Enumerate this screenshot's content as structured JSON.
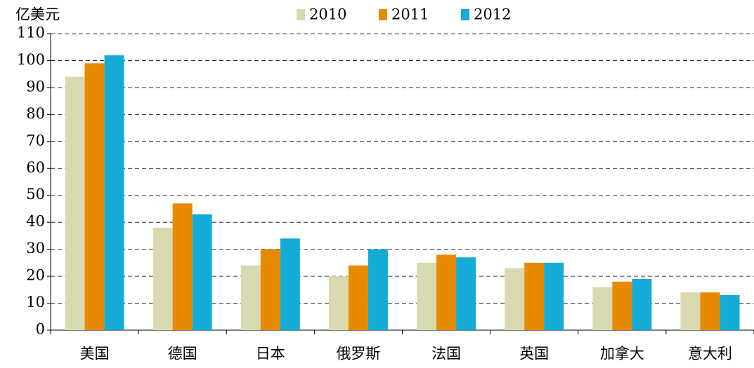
{
  "chart_data": {
    "type": "bar",
    "y_label": "亿美元",
    "categories": [
      "美国",
      "德国",
      "日本",
      "俄罗斯",
      "法国",
      "英国",
      "加拿大",
      "意大利"
    ],
    "series": [
      {
        "name": "2010",
        "color": "#d9d9b0",
        "values": [
          94,
          38,
          24,
          20,
          25,
          23,
          16,
          14
        ]
      },
      {
        "name": "2011",
        "color": "#e88a00",
        "values": [
          99,
          47,
          30,
          24,
          28,
          25,
          18,
          14
        ]
      },
      {
        "name": "2012",
        "color": "#14acd6",
        "values": [
          102,
          43,
          34,
          30,
          27,
          25,
          19,
          13
        ]
      }
    ],
    "ylim": [
      0,
      110
    ],
    "yticks": [
      0,
      10,
      20,
      30,
      40,
      50,
      60,
      70,
      80,
      90,
      100,
      110
    ],
    "grid": true,
    "legend": "top"
  }
}
